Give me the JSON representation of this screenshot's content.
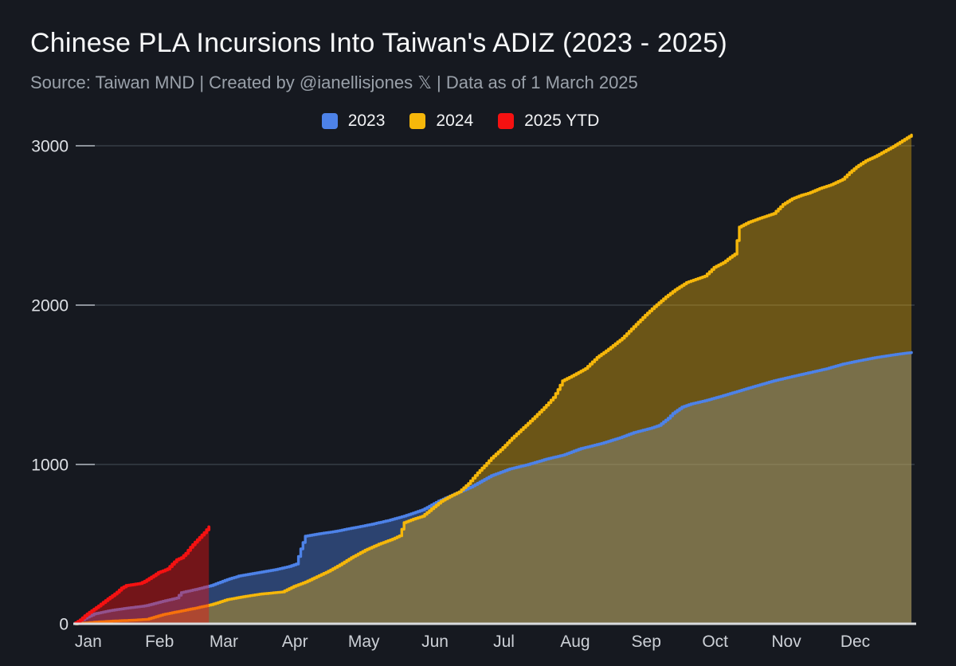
{
  "header": {
    "title": "Chinese PLA Incursions Into Taiwan's ADIZ (2023 - 2025)",
    "subtitle": "Source: Taiwan MND | Created by @ianellisjones 𝕏 | Data as of 1 March 2025"
  },
  "colors": {
    "background": "#161920",
    "title_text": "#f6f7f8",
    "subtitle_text": "#9aa1aa",
    "axis_label_y": "#dde0e5",
    "axis_label_x": "#ccd0d6",
    "gridline": "#3e444c",
    "tick_stub": "#8d939b",
    "baseline": "#d9dbde"
  },
  "chart_data": {
    "type": "area",
    "title": "Chinese PLA Incursions Into Taiwan's ADIZ (2023 - 2025)",
    "xlabel": "",
    "ylabel": "",
    "legend_position": "top",
    "grid": true,
    "x_axis": {
      "months": [
        "Jan",
        "Feb",
        "Mar",
        "Apr",
        "May",
        "Jun",
        "Jul",
        "Aug",
        "Sep",
        "Oct",
        "Nov",
        "Dec"
      ],
      "month_start_days": [
        0,
        31,
        59,
        90,
        120,
        151,
        181,
        212,
        243,
        273,
        304,
        334
      ],
      "domain_days": 365
    },
    "y_axis": {
      "ticks": [
        0,
        1000,
        2000,
        3000
      ],
      "min": 0,
      "max": 3100
    },
    "series": [
      {
        "name": "2023",
        "color": "#4d82e8",
        "fill": "rgba(77,130,232,0.40)",
        "line_width": 3.4,
        "on_top": false,
        "points": [
          [
            0,
            0
          ],
          [
            4,
            35
          ],
          [
            8,
            62
          ],
          [
            15,
            83
          ],
          [
            22,
            98
          ],
          [
            29,
            110
          ],
          [
            31,
            115
          ],
          [
            37,
            138
          ],
          [
            44,
            162
          ],
          [
            46,
            196
          ],
          [
            52,
            215
          ],
          [
            59,
            240
          ],
          [
            66,
            278
          ],
          [
            71,
            300
          ],
          [
            79,
            320
          ],
          [
            87,
            340
          ],
          [
            93,
            360
          ],
          [
            96,
            375
          ],
          [
            98,
            470
          ],
          [
            100,
            550
          ],
          [
            106,
            565
          ],
          [
            113,
            580
          ],
          [
            120,
            600
          ],
          [
            128,
            622
          ],
          [
            136,
            648
          ],
          [
            143,
            676
          ],
          [
            151,
            715
          ],
          [
            158,
            770
          ],
          [
            165,
            815
          ],
          [
            172,
            858
          ],
          [
            181,
            930
          ],
          [
            189,
            972
          ],
          [
            197,
            1000
          ],
          [
            205,
            1034
          ],
          [
            212,
            1058
          ],
          [
            220,
            1100
          ],
          [
            229,
            1132
          ],
          [
            237,
            1168
          ],
          [
            243,
            1200
          ],
          [
            250,
            1226
          ],
          [
            254,
            1245
          ],
          [
            258,
            1290
          ],
          [
            260,
            1320
          ],
          [
            264,
            1360
          ],
          [
            268,
            1380
          ],
          [
            274,
            1400
          ],
          [
            281,
            1428
          ],
          [
            288,
            1458
          ],
          [
            296,
            1492
          ],
          [
            304,
            1525
          ],
          [
            312,
            1552
          ],
          [
            320,
            1578
          ],
          [
            327,
            1601
          ],
          [
            334,
            1630
          ],
          [
            341,
            1651
          ],
          [
            348,
            1670
          ],
          [
            355,
            1686
          ],
          [
            360,
            1696
          ],
          [
            364,
            1703
          ]
        ]
      },
      {
        "name": "2024",
        "color": "#f6b70a",
        "fill": "rgba(246,183,10,0.38)",
        "line_width": 3.4,
        "on_top": false,
        "points": [
          [
            0,
            0
          ],
          [
            8,
            10
          ],
          [
            16,
            17
          ],
          [
            24,
            22
          ],
          [
            31,
            28
          ],
          [
            38,
            58
          ],
          [
            45,
            78
          ],
          [
            52,
            98
          ],
          [
            59,
            120
          ],
          [
            66,
            152
          ],
          [
            73,
            170
          ],
          [
            80,
            186
          ],
          [
            90,
            200
          ],
          [
            95,
            235
          ],
          [
            100,
            262
          ],
          [
            105,
            296
          ],
          [
            110,
            330
          ],
          [
            115,
            370
          ],
          [
            120,
            415
          ],
          [
            126,
            462
          ],
          [
            132,
            500
          ],
          [
            138,
            532
          ],
          [
            141,
            552
          ],
          [
            143,
            635
          ],
          [
            147,
            657
          ],
          [
            151,
            675
          ],
          [
            155,
            722
          ],
          [
            159,
            768
          ],
          [
            163,
            800
          ],
          [
            167,
            828
          ],
          [
            171,
            880
          ],
          [
            175,
            948
          ],
          [
            178,
            992
          ],
          [
            181,
            1040
          ],
          [
            185,
            1092
          ],
          [
            190,
            1165
          ],
          [
            195,
            1232
          ],
          [
            200,
            1300
          ],
          [
            205,
            1372
          ],
          [
            208,
            1420
          ],
          [
            210,
            1470
          ],
          [
            212,
            1525
          ],
          [
            217,
            1562
          ],
          [
            222,
            1602
          ],
          [
            227,
            1672
          ],
          [
            232,
            1724
          ],
          [
            238,
            1792
          ],
          [
            243,
            1865
          ],
          [
            248,
            1937
          ],
          [
            252,
            1990
          ],
          [
            257,
            2052
          ],
          [
            261,
            2096
          ],
          [
            266,
            2142
          ],
          [
            270,
            2162
          ],
          [
            274,
            2182
          ],
          [
            278,
            2237
          ],
          [
            282,
            2267
          ],
          [
            285,
            2300
          ],
          [
            287,
            2320
          ],
          [
            289,
            2490
          ],
          [
            293,
            2520
          ],
          [
            298,
            2546
          ],
          [
            304,
            2575
          ],
          [
            308,
            2632
          ],
          [
            312,
            2668
          ],
          [
            316,
            2690
          ],
          [
            319,
            2702
          ],
          [
            324,
            2732
          ],
          [
            329,
            2756
          ],
          [
            334,
            2790
          ],
          [
            337,
            2832
          ],
          [
            340,
            2868
          ],
          [
            344,
            2906
          ],
          [
            348,
            2932
          ],
          [
            352,
            2964
          ],
          [
            356,
            2996
          ],
          [
            360,
            3032
          ],
          [
            364,
            3068
          ]
        ]
      },
      {
        "name": "2025 YTD",
        "color": "#f51111",
        "fill": "rgba(245,17,17,0.42)",
        "line_width": 3.8,
        "on_top": true,
        "points": [
          [
            0,
            6
          ],
          [
            2,
            24
          ],
          [
            4,
            50
          ],
          [
            6,
            72
          ],
          [
            8,
            92
          ],
          [
            10,
            112
          ],
          [
            12,
            134
          ],
          [
            14,
            156
          ],
          [
            16,
            176
          ],
          [
            18,
            198
          ],
          [
            20,
            224
          ],
          [
            22,
            240
          ],
          [
            25,
            246
          ],
          [
            28,
            253
          ],
          [
            30,
            266
          ],
          [
            32,
            284
          ],
          [
            34,
            302
          ],
          [
            36,
            322
          ],
          [
            38,
            332
          ],
          [
            40,
            344
          ],
          [
            42,
            374
          ],
          [
            44,
            402
          ],
          [
            46,
            414
          ],
          [
            48,
            442
          ],
          [
            50,
            480
          ],
          [
            52,
            512
          ],
          [
            54,
            542
          ],
          [
            56,
            572
          ],
          [
            58,
            608
          ]
        ]
      }
    ]
  }
}
